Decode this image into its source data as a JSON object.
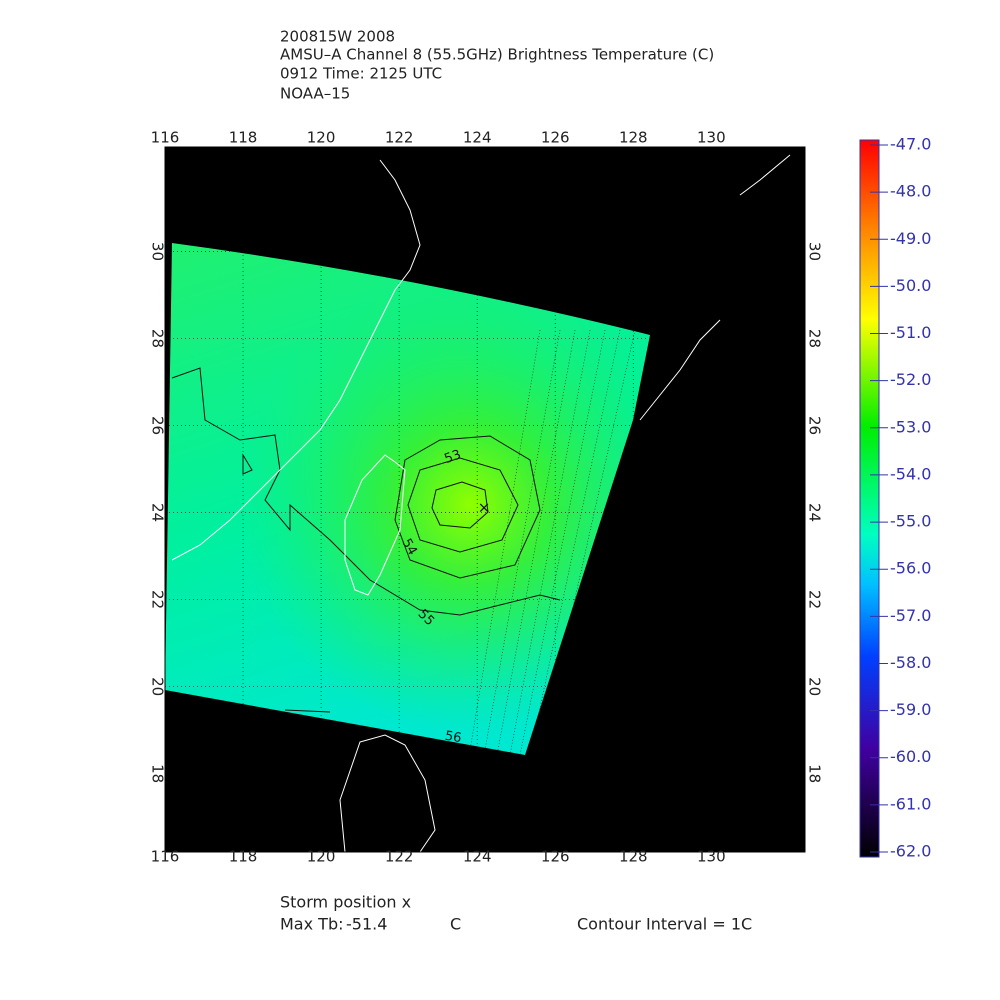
{
  "header": {
    "lines": [
      "200815W 2008",
      "AMSU–A Channel 8 (55.5GHz) Brightness Temperature (C)",
      "0912 Time: 2125 UTC",
      "NOAA–15"
    ]
  },
  "map": {
    "lonlim": [
      116,
      132.4
    ],
    "latlim": [
      16.2,
      32.4
    ],
    "lon_ticks": [
      116,
      118,
      120,
      122,
      124,
      126,
      128,
      130
    ],
    "lat_ticks": [
      18,
      20,
      22,
      24,
      26,
      28,
      30
    ],
    "contour_labels": [
      "53",
      "54",
      "55",
      "56"
    ]
  },
  "colorbar": {
    "lim": [
      -62,
      -47
    ],
    "ticks": [
      {
        "value": -47,
        "label": "-47.0"
      },
      {
        "value": -48,
        "label": "-48.0"
      },
      {
        "value": -49,
        "label": "-49.0"
      },
      {
        "value": -50,
        "label": "-50.0"
      },
      {
        "value": -51,
        "label": "-51.0"
      },
      {
        "value": -52,
        "label": "-52.0"
      },
      {
        "value": -53,
        "label": "-53.0"
      },
      {
        "value": -54,
        "label": "-54.0"
      },
      {
        "value": -55,
        "label": "-55.0"
      },
      {
        "value": -56,
        "label": "-56.0"
      },
      {
        "value": -57,
        "label": "-57.0"
      },
      {
        "value": -58,
        "label": "-58.0"
      },
      {
        "value": -59,
        "label": "-59.0"
      },
      {
        "value": -60,
        "label": "-60.0"
      },
      {
        "value": -61,
        "label": "-61.0"
      },
      {
        "value": -62,
        "label": "-62.0"
      }
    ]
  },
  "footer": {
    "storm_position": "Storm position x",
    "max_tb_label": "Max Tb:",
    "max_tb_value": -51.4,
    "max_tb_unit": "C",
    "contour_interval": "Contour Interval = 1C"
  }
}
